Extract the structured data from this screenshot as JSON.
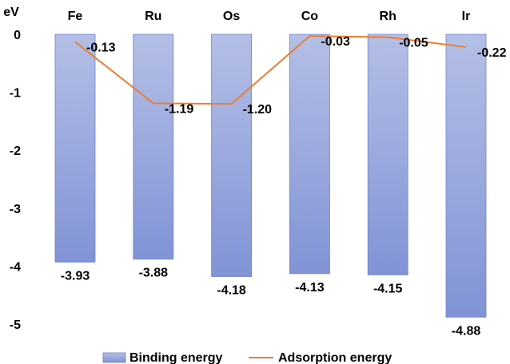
{
  "chart_data": {
    "type": "bar",
    "unit_label": "eV",
    "categories": [
      "Fe",
      "Ru",
      "Os",
      "Co",
      "Rh",
      "Ir"
    ],
    "series": [
      {
        "name": "Binding energy",
        "type": "bar",
        "values": [
          -3.93,
          -3.88,
          -4.18,
          -4.13,
          -4.15,
          -4.88
        ],
        "labels": [
          "-3.93",
          "-3.88",
          "-4.18",
          "-4.13",
          "-4.15",
          "-4.88"
        ]
      },
      {
        "name": "Adsorption energy",
        "type": "line",
        "values": [
          -0.13,
          -1.19,
          -1.2,
          -0.03,
          -0.05,
          -0.22
        ],
        "labels": [
          "-0.13",
          "-1.19",
          "-1.20",
          "-0.03",
          "-0.05",
          "-0.22"
        ]
      }
    ],
    "y_ticks": [
      "0",
      "-1",
      "-2",
      "-3",
      "-4",
      "-5"
    ],
    "ylim": [
      -5,
      0
    ],
    "grid": false,
    "legend_position": "bottom",
    "colors": {
      "bar_fill_top": "#b4bfe6",
      "bar_fill_bottom": "#8193d6",
      "bar_stroke": "#6f82c8",
      "line": "#ed7d31"
    }
  }
}
